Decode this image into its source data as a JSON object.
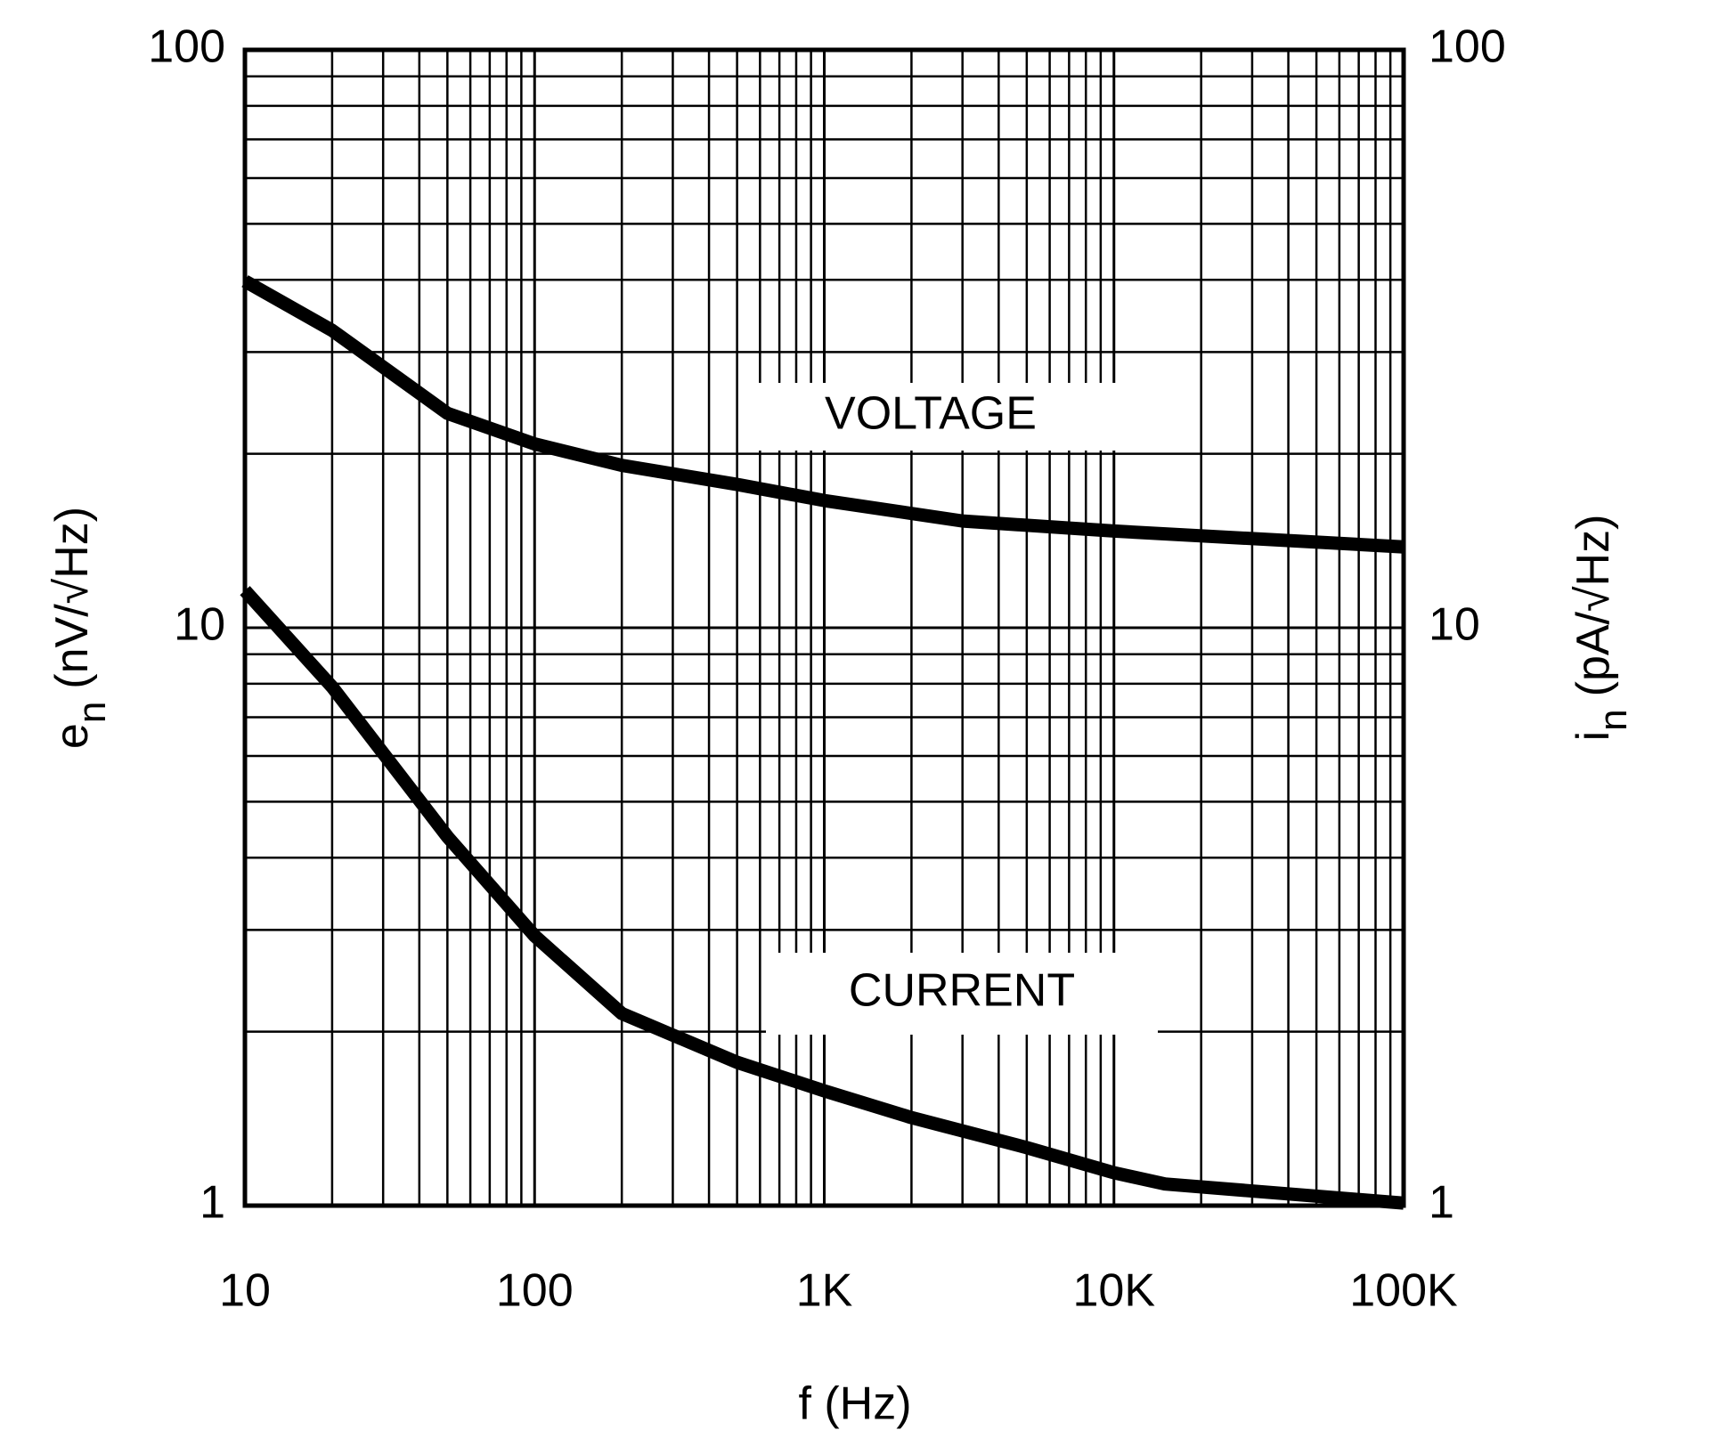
{
  "chart_data": {
    "type": "line",
    "xlabel": "f (Hz)",
    "ylabel": {
      "main": "e",
      "sub": "n",
      "unit": "(nV/√Hz)"
    },
    "y2label": {
      "main": "i",
      "sub": "n",
      "unit": "(pA/√Hz)"
    },
    "xlog": true,
    "ylog": true,
    "grid": true,
    "minor_grid": true,
    "xlim": [
      10,
      100000
    ],
    "xticks": [
      10,
      100,
      {
        "value": 1000,
        "label": "1K"
      },
      {
        "value": 10000,
        "label": "10K"
      },
      {
        "value": 100000,
        "label": "100K"
      }
    ],
    "ylim": [
      1,
      100
    ],
    "yticks": [
      1,
      10,
      100
    ],
    "y2lim": [
      1,
      100
    ],
    "y2ticks": [
      1,
      10,
      100
    ],
    "series": [
      {
        "name": "VOLTAGE",
        "color": "#000000",
        "x": [
          10,
          20,
          50,
          100,
          200,
          500,
          1000,
          3000,
          10000,
          100000
        ],
        "values": [
          39.8,
          32.7,
          23.5,
          20.8,
          19.1,
          17.7,
          16.6,
          15.3,
          14.7,
          13.8
        ]
      },
      {
        "name": "CURRENT",
        "color": "#000000",
        "axis": "y2",
        "x": [
          10,
          20,
          50,
          100,
          200,
          500,
          1000,
          2000,
          5000,
          10000,
          15000,
          100000
        ],
        "values": [
          11.6,
          7.9,
          4.35,
          2.93,
          2.15,
          1.77,
          1.58,
          1.42,
          1.26,
          1.14,
          1.09,
          1.01
        ]
      }
    ]
  }
}
